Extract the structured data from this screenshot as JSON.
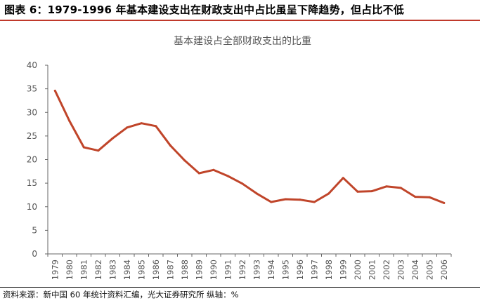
{
  "header": {
    "figure_title": "图表 6：1979-1996 年基本建设支出在财政支出中占比虽呈下降趋势，但占比不低"
  },
  "footer": {
    "source": "资料来源：新中国 60 年统计资料汇编，光大证券研究所 纵轴：%"
  },
  "colors": {
    "accent": "#c0452a",
    "rule": "#c0392b",
    "axis": "#666666",
    "text": "#555555"
  },
  "chart_data": {
    "type": "line",
    "title": "基本建设占全部财政支出的比重",
    "xlabel": "",
    "ylabel": "",
    "ylim": [
      0,
      40
    ],
    "yticks": [
      0,
      5,
      10,
      15,
      20,
      25,
      30,
      35,
      40
    ],
    "grid": false,
    "legend": "none",
    "categories": [
      "1979",
      "1980",
      "1981",
      "1982",
      "1983",
      "1984",
      "1985",
      "1986",
      "1987",
      "1988",
      "1989",
      "1990",
      "1991",
      "1992",
      "1993",
      "1994",
      "1995",
      "1996",
      "1997",
      "1998",
      "1999",
      "2000",
      "2001",
      "2002",
      "2003",
      "2004",
      "2005",
      "2006"
    ],
    "series": [
      {
        "values": [
          34.6,
          28.2,
          22.6,
          21.9,
          24.5,
          26.8,
          27.7,
          27.1,
          23.0,
          19.8,
          17.1,
          17.8,
          16.5,
          14.9,
          12.8,
          11.0,
          11.6,
          11.5,
          11.0,
          12.8,
          16.1,
          13.2,
          13.3,
          14.3,
          14.0,
          12.1,
          12.0,
          10.8
        ]
      }
    ]
  }
}
